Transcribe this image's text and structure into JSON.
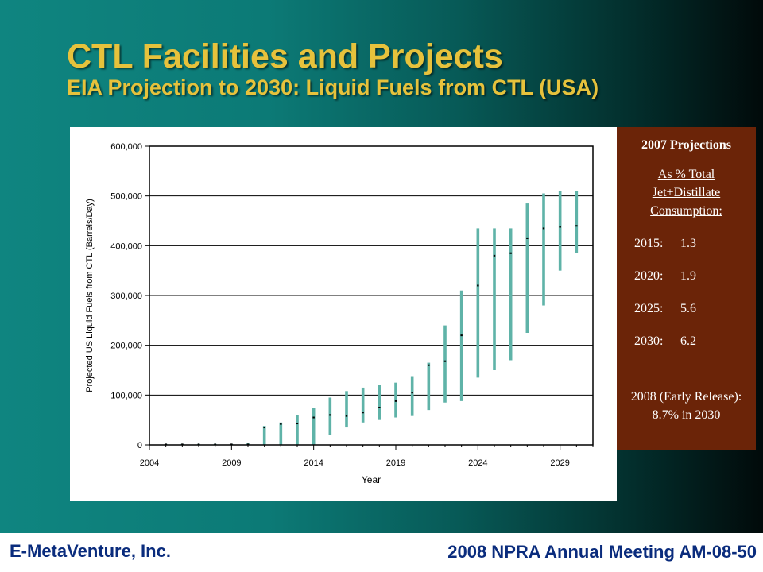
{
  "slide": {
    "title": "CTL Facilities and Projects",
    "subtitle": "EIA Projection to 2030:  Liquid Fuels from CTL (USA)"
  },
  "side_panel": {
    "heading": "2007 Projections",
    "subheading": "As % Total Jet+Distillate Consumption:",
    "projections": [
      {
        "year": "2015:",
        "value": "1.3"
      },
      {
        "year": "2020:",
        "value": "1.9"
      },
      {
        "year": "2025:",
        "value": "5.6"
      },
      {
        "year": "2030:",
        "value": "6.2"
      }
    ],
    "note": "2008 (Early Release):  8.7% in 2030"
  },
  "footer": {
    "left": "E-MetaVenture, Inc.",
    "right": "2008 NPRA Annual Meeting AM-08-50"
  },
  "colors": {
    "title": "#e6c23c",
    "bar": "#5fb3a8",
    "side_panel_bg": "#6b2408",
    "footer_text": "#0a2c7d"
  },
  "chart_data": {
    "type": "bar",
    "subtype": "range",
    "xlabel": "Year",
    "ylabel": "Projected US Liquid Fuels from CTL (Barrels/Day)",
    "xlim": [
      2004,
      2031
    ],
    "ylim": [
      0,
      600000
    ],
    "xticks": [
      2004,
      2009,
      2014,
      2019,
      2024,
      2029
    ],
    "xtick_labels": [
      "2004",
      "2009",
      "2014",
      "2019",
      "2024",
      "2029"
    ],
    "yticks": [
      0,
      100000,
      200000,
      300000,
      400000,
      500000,
      600000
    ],
    "ytick_labels": [
      "0",
      "100,000",
      "200,000",
      "300,000",
      "400,000",
      "500,000",
      "600,000"
    ],
    "grid": "horizontal",
    "series": [
      {
        "x": [
          2005,
          2006,
          2007,
          2008,
          2009,
          2010,
          2011,
          2012,
          2013,
          2014,
          2015,
          2016,
          2017,
          2018,
          2019,
          2020,
          2021,
          2022,
          2023,
          2024,
          2025,
          2026,
          2027,
          2028,
          2029,
          2030
        ],
        "low": [
          0,
          0,
          0,
          0,
          0,
          0,
          0,
          0,
          0,
          0,
          20000,
          35000,
          45000,
          50000,
          55000,
          58000,
          70000,
          85000,
          88000,
          135000,
          150000,
          170000,
          225000,
          280000,
          350000,
          385000
        ],
        "high": [
          2000,
          2000,
          2000,
          2000,
          2000,
          3000,
          38000,
          45000,
          60000,
          75000,
          95000,
          108000,
          115000,
          120000,
          125000,
          138000,
          165000,
          240000,
          310000,
          435000,
          435000,
          435000,
          485000,
          505000,
          510000,
          510000
        ],
        "mid": [
          1000,
          1000,
          1000,
          1000,
          1000,
          1000,
          35000,
          42000,
          43000,
          55000,
          60000,
          58000,
          65000,
          75000,
          88000,
          105000,
          160000,
          168000,
          220000,
          320000,
          380000,
          385000,
          415000,
          435000,
          438000,
          440000
        ]
      }
    ]
  }
}
